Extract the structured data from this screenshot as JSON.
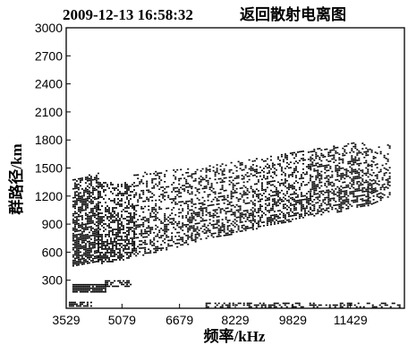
{
  "chart_data": {
    "type": "scatter",
    "title_time": "2009-12-13 16:58:32",
    "title_name": "返回散射电离图",
    "xlabel": "频率/kHz",
    "ylabel": "群路径/km",
    "xlim": [
      3529,
      12929
    ],
    "ylim": [
      0,
      3000
    ],
    "x_ticks": [
      3529,
      5079,
      6679,
      8229,
      9829,
      11429
    ],
    "y_ticks": [
      300,
      600,
      900,
      1200,
      1500,
      1800,
      2100,
      2400,
      2700,
      3000
    ],
    "echo_regions": [
      {
        "x": [
          3700,
          4400
        ],
        "y_lower": [
          450,
          500
        ],
        "y_upper": [
          1400,
          1450
        ],
        "density": 0.85
      },
      {
        "x": [
          4400,
          5400
        ],
        "y_lower": [
          470,
          550
        ],
        "y_upper": [
          1350,
          1350
        ],
        "density": 0.65
      },
      {
        "x": [
          5400,
          7000
        ],
        "y_lower": [
          550,
          700
        ],
        "y_upper": [
          1450,
          1500
        ],
        "density": 0.45
      },
      {
        "x": [
          7000,
          8700
        ],
        "y_lower": [
          700,
          850
        ],
        "y_upper": [
          1500,
          1600
        ],
        "density": 0.45
      },
      {
        "x": [
          8700,
          10300
        ],
        "y_lower": [
          850,
          980
        ],
        "y_upper": [
          1600,
          1700
        ],
        "density": 0.5
      },
      {
        "x": [
          10300,
          11900
        ],
        "y_lower": [
          980,
          1100
        ],
        "y_upper": [
          1700,
          1800
        ],
        "density": 0.55
      },
      {
        "x": [
          11900,
          12500
        ],
        "y_lower": [
          1100,
          1180
        ],
        "y_upper": [
          1700,
          1800
        ],
        "density": 0.45
      }
    ],
    "strips": [
      {
        "x": [
          3700,
          4600
        ],
        "y": [
          180,
          260
        ],
        "density": 0.95
      },
      {
        "x": [
          4600,
          5300
        ],
        "y": [
          230,
          300
        ],
        "density": 0.6
      },
      {
        "x": [
          3600,
          4200
        ],
        "y": [
          20,
          70
        ],
        "density": 0.8
      },
      {
        "x": [
          7400,
          12800
        ],
        "y": [
          10,
          60
        ],
        "density": 0.4
      }
    ]
  }
}
